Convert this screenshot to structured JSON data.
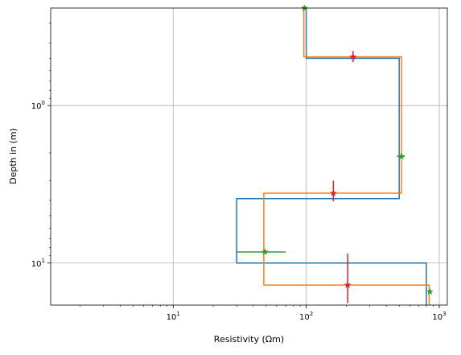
{
  "chart_data": {
    "type": "line",
    "title": "",
    "xlabel": "Resistivity (Ωm)",
    "ylabel": "Depth in (m)",
    "xscale": "log",
    "yscale": "log",
    "y_inverted": true,
    "xlim": [
      1.2,
      1150
    ],
    "ylim": [
      0.24,
      18.5
    ],
    "x_ticks": [
      {
        "value": 10,
        "label": "10^1",
        "base": "10",
        "exp": "1"
      },
      {
        "value": 100,
        "label": "10^2",
        "base": "10",
        "exp": "2"
      },
      {
        "value": 1000,
        "label": "10^3",
        "base": "10",
        "exp": "3"
      }
    ],
    "y_ticks": [
      {
        "value": 1,
        "label": "10^0",
        "base": "10",
        "exp": "0"
      },
      {
        "value": 10,
        "label": "10^1",
        "base": "10",
        "exp": "1"
      }
    ],
    "grid": true,
    "series": [
      {
        "color": "#1f77b4",
        "steps": [
          {
            "res": 100,
            "top": 0.24,
            "bottom": 0.5
          },
          {
            "res": 500,
            "top": 0.5,
            "bottom": 3.9
          },
          {
            "res": 30,
            "top": 3.9,
            "bottom": 10
          },
          {
            "res": 800,
            "top": 10,
            "bottom": 18.5
          }
        ]
      },
      {
        "color": "#ff7f0e",
        "steps": [
          {
            "res": 96,
            "top": 0.24,
            "bottom": 0.49
          },
          {
            "res": 520,
            "top": 0.49,
            "bottom": 3.6
          },
          {
            "res": 48,
            "top": 3.6,
            "bottom": 13.8
          },
          {
            "res": 840,
            "top": 13.8,
            "bottom": 18.5
          }
        ]
      }
    ],
    "markers": [
      {
        "x": 97,
        "y": 0.24,
        "xerr": [
          97,
          97
        ],
        "yerr": [
          0.24,
          0.24
        ],
        "color": "#2ca02c"
      },
      {
        "x": 225,
        "y": 0.49,
        "xerr": [
          215,
          235
        ],
        "yerr": [
          0.45,
          0.53
        ],
        "color": "#d62728"
      },
      {
        "x": 520,
        "y": 2.1,
        "xerr": [
          480,
          550
        ],
        "yerr": [
          2.1,
          2.1
        ],
        "color": "#2ca02c"
      },
      {
        "x": 160,
        "y": 3.6,
        "xerr": [
          160,
          160
        ],
        "yerr": [
          3.0,
          4.05
        ],
        "color": "#d62728"
      },
      {
        "x": 49,
        "y": 8.5,
        "xerr": [
          30,
          70
        ],
        "yerr": [
          8.5,
          8.5
        ],
        "color": "#2ca02c"
      },
      {
        "x": 205,
        "y": 13.8,
        "xerr": [
          205,
          205
        ],
        "yerr": [
          8.7,
          18.0
        ],
        "color": "#d62728"
      },
      {
        "x": 850,
        "y": 15.2,
        "xerr": [
          850,
          850
        ],
        "yerr": [
          15.2,
          15.2
        ],
        "color": "#2ca02c"
      }
    ]
  }
}
